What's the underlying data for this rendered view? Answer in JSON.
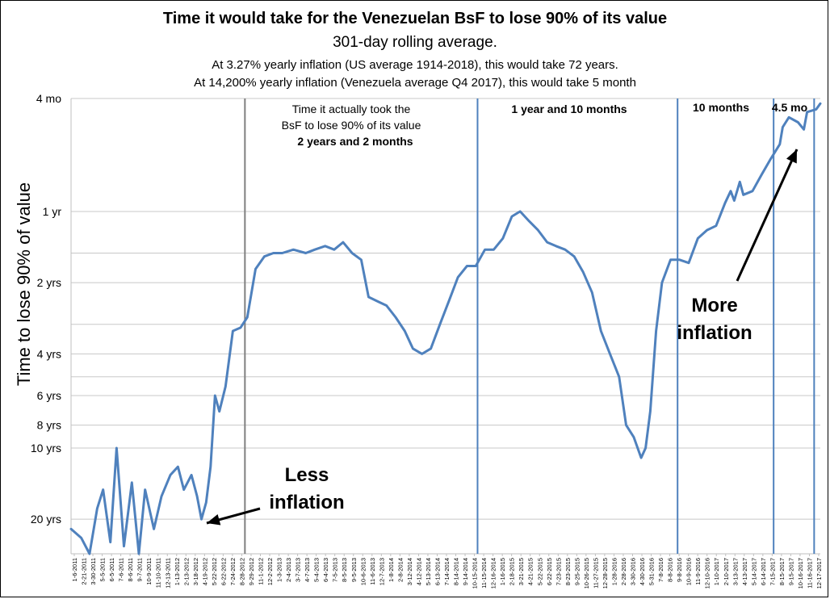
{
  "chart_data": {
    "type": "line",
    "title": "Time it would take for the Venezuelan BsF to lose 90% of its value",
    "subtitle": "301-day rolling average.",
    "notes": [
      "At 3.27% yearly inflation (US average 1914-2018), this would take 72 years.",
      "At 14,200% yearly inflation (Venezuela average Q4 2017), this would take 5 month"
    ],
    "ylabel": "Time to lose 90% of value",
    "y_scale": "log",
    "y_inverted": true,
    "y_unit": "years",
    "ylim": [
      0.333,
      28
    ],
    "y_ticks": [
      {
        "value": 0.333,
        "label": "4 mo"
      },
      {
        "value": 1,
        "label": "1 yr"
      },
      {
        "value": 2,
        "label": "2 yrs"
      },
      {
        "value": 4,
        "label": "4 yrs"
      },
      {
        "value": 6,
        "label": "6 yrs"
      },
      {
        "value": 8,
        "label": "8 yrs"
      },
      {
        "value": 10,
        "label": "10 yrs"
      },
      {
        "value": 20,
        "label": "20 yrs"
      }
    ],
    "y_gridlines": [
      0.333,
      1,
      1.5,
      2,
      3,
      4,
      5,
      6,
      8,
      10,
      20
    ],
    "x_ticks": [
      "1-6-2011",
      "2-21-2011",
      "3-30-2011",
      "5-5-2011",
      "6-5-2011",
      "7-6-2011",
      "8-6-2011",
      "9-7-2011",
      "10-9-2011",
      "11-10-2011",
      "12-13-2011",
      "1-13-2012",
      "2-13-2012",
      "3-18-2012",
      "4-19-2012",
      "5-22-2012",
      "6-22-2012",
      "7-24-2012",
      "8-28-2012",
      "9-29-2012",
      "11-1-2012",
      "12-2-2012",
      "1-3-2013",
      "2-4-2013",
      "3-7-2013",
      "4-7-2013",
      "5-4-2013",
      "6-4-2013",
      "7-5-2013",
      "8-5-2013",
      "9-5-2013",
      "10-6-2013",
      "11-6-2013",
      "12-7-2013",
      "1-8-2014",
      "2-8-2014",
      "3-12-2014",
      "4-12-2014",
      "5-13-2014",
      "6-13-2014",
      "7-14-2014",
      "8-14-2014",
      "9-14-2014",
      "10-15-2014",
      "11-15-2014",
      "12-16-2014",
      "1-16-2015",
      "2-18-2015",
      "3-21-2015",
      "4-21-2015",
      "5-22-2015",
      "6-22-2015",
      "7-23-2015",
      "8-23-2015",
      "9-25-2015",
      "10-26-2015",
      "11-27-2015",
      "12-28-2015",
      "1-28-2016",
      "2-28-2016",
      "3-30-2016",
      "4-30-2016",
      "5-31-2016",
      "7-8-2016",
      "8-8-2016",
      "9-8-2016",
      "10-9-2016",
      "11-9-2016",
      "12-10-2016",
      "1-10-2017",
      "2-10-2017",
      "3-13-2017",
      "4-13-2017",
      "5-14-2017",
      "6-14-2017",
      "7-15-2017",
      "8-15-2017",
      "9-15-2017",
      "10-16-2017",
      "11-16-2017",
      "12-17-2017"
    ],
    "series": [
      {
        "color": "#4f81bd",
        "x": [
          "2011-01-06",
          "2011-02-10",
          "2011-03-10",
          "2011-04-05",
          "2011-04-25",
          "2011-05-20",
          "2011-06-10",
          "2011-07-05",
          "2011-08-01",
          "2011-08-25",
          "2011-09-15",
          "2011-10-15",
          "2011-11-10",
          "2011-12-10",
          "2012-01-05",
          "2012-01-25",
          "2012-02-20",
          "2012-03-10",
          "2012-03-25",
          "2012-04-10",
          "2012-04-25",
          "2012-05-10",
          "2012-05-25",
          "2012-06-15",
          "2012-07-10",
          "2012-08-05",
          "2012-08-28",
          "2012-09-25",
          "2012-10-25",
          "2012-11-25",
          "2012-12-25",
          "2013-02-01",
          "2013-03-15",
          "2013-04-15",
          "2013-05-20",
          "2013-06-20",
          "2013-07-20",
          "2013-08-20",
          "2013-09-20",
          "2013-10-15",
          "2013-11-15",
          "2013-12-15",
          "2014-01-15",
          "2014-02-15",
          "2014-03-15",
          "2014-04-15",
          "2014-05-15",
          "2014-06-15",
          "2014-07-15",
          "2014-08-15",
          "2014-09-15",
          "2014-10-15",
          "2014-11-15",
          "2014-12-15",
          "2015-01-15",
          "2015-02-15",
          "2015-03-15",
          "2015-04-15",
          "2015-05-15",
          "2015-06-15",
          "2015-07-15",
          "2015-08-15",
          "2015-09-15",
          "2015-10-15",
          "2015-11-15",
          "2015-12-15",
          "2016-01-15",
          "2016-02-15",
          "2016-03-10",
          "2016-04-05",
          "2016-04-30",
          "2016-05-15",
          "2016-05-31",
          "2016-06-20",
          "2016-07-10",
          "2016-08-08",
          "2016-09-08",
          "2016-10-09",
          "2016-11-09",
          "2016-12-10",
          "2017-01-10",
          "2017-02-10",
          "2017-03-01",
          "2017-03-13",
          "2017-04-01",
          "2017-04-13",
          "2017-05-14",
          "2017-06-14",
          "2017-07-15",
          "2017-08-15",
          "2017-08-25",
          "2017-09-15",
          "2017-10-16",
          "2017-11-05",
          "2017-11-16",
          "2017-12-17",
          "2017-12-31"
        ],
        "y": [
          22,
          24,
          28,
          18,
          15,
          25,
          10,
          26,
          14,
          28,
          15,
          22,
          16,
          13,
          12,
          15,
          13,
          16,
          20,
          17,
          12,
          6,
          7,
          5.5,
          3.2,
          3.1,
          2.8,
          1.75,
          1.55,
          1.5,
          1.5,
          1.45,
          1.5,
          1.45,
          1.4,
          1.45,
          1.35,
          1.5,
          1.6,
          2.3,
          2.4,
          2.5,
          2.8,
          3.2,
          3.8,
          4,
          3.8,
          3.0,
          2.4,
          1.9,
          1.7,
          1.7,
          1.45,
          1.45,
          1.3,
          1.05,
          1.0,
          1.1,
          1.2,
          1.35,
          1.4,
          1.45,
          1.55,
          1.8,
          2.2,
          3.2,
          4.0,
          5.0,
          8.0,
          9.0,
          11.0,
          10.0,
          7.0,
          3.2,
          2.0,
          1.6,
          1.6,
          1.65,
          1.3,
          1.2,
          1.15,
          0.92,
          0.82,
          0.9,
          0.75,
          0.85,
          0.82,
          0.7,
          0.6,
          0.52,
          0.44,
          0.4,
          0.42,
          0.45,
          0.38,
          0.37,
          0.35
        ]
      }
    ],
    "vertical_lines": [
      {
        "x": "2012-08-20",
        "color": "#7f7f7f"
      },
      {
        "x": "2014-10-21",
        "color": "#4f81bd"
      },
      {
        "x": "2016-09-01",
        "color": "#4f81bd"
      },
      {
        "x": "2017-07-25",
        "color": "#4f81bd"
      },
      {
        "x": "2017-12-10",
        "color": "#4f81bd"
      }
    ],
    "annotations": [
      {
        "id": "ann_first_line1",
        "text": "Time it actually took the",
        "bold": false
      },
      {
        "id": "ann_first_line2",
        "text": "BsF to lose 90% of its value",
        "bold": false
      },
      {
        "id": "ann_first_line3",
        "text": "2 years and 2 months",
        "bold": true
      },
      {
        "id": "ann_second",
        "text": "1 year and 10 months",
        "bold": true
      },
      {
        "id": "ann_third",
        "text": "10 months",
        "bold": true
      },
      {
        "id": "ann_fourth",
        "text": "4.5 mo",
        "bold": true
      },
      {
        "id": "ann_less1",
        "text": "Less",
        "bold": true
      },
      {
        "id": "ann_less2",
        "text": "inflation",
        "bold": true
      },
      {
        "id": "ann_more1",
        "text": "More",
        "bold": true
      },
      {
        "id": "ann_more2",
        "text": "inflation",
        "bold": true
      }
    ]
  }
}
